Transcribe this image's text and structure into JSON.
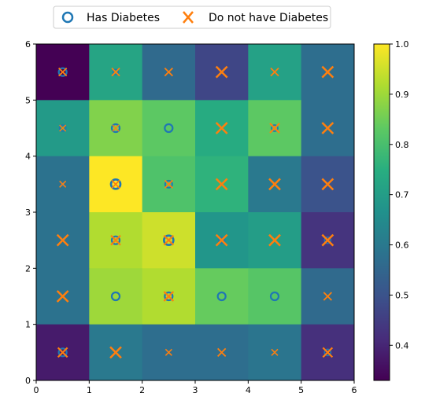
{
  "chart_data": {
    "type": "heatmap",
    "title": "",
    "xlabel": "",
    "ylabel": "",
    "xlim": [
      0,
      6
    ],
    "ylim": [
      0,
      6
    ],
    "x_ticks": [
      "0",
      "1",
      "2",
      "3",
      "4",
      "5",
      "6"
    ],
    "y_ticks": [
      "0",
      "1",
      "2",
      "3",
      "4",
      "5",
      "6"
    ],
    "grid": false,
    "legend_placement": "top-center",
    "colormap": "viridis",
    "colorbar": {
      "range": [
        0.33,
        1.0
      ],
      "ticks": [
        "0.4",
        "0.5",
        "0.6",
        "0.7",
        "0.8",
        "0.9",
        "1.0"
      ],
      "tick_values": [
        0.4,
        0.5,
        0.6,
        0.7,
        0.8,
        0.9,
        1.0
      ]
    },
    "heatmap_rows_top_to_bottom": [
      [
        0.33,
        0.72,
        0.56,
        0.47,
        0.71,
        0.57
      ],
      [
        0.69,
        0.87,
        0.83,
        0.74,
        0.83,
        0.57
      ],
      [
        0.58,
        1.0,
        0.81,
        0.76,
        0.6,
        0.5
      ],
      [
        0.58,
        0.92,
        0.95,
        0.68,
        0.7,
        0.43
      ],
      [
        0.58,
        0.9,
        0.92,
        0.84,
        0.82,
        0.56
      ],
      [
        0.38,
        0.6,
        0.57,
        0.57,
        0.59,
        0.42
      ]
    ],
    "series": [
      {
        "name": "Has Diabetes",
        "marker": "circle",
        "color": "#1f77b4",
        "points": [
          [
            0.5,
            5.5,
            10
          ],
          [
            1.5,
            5.5,
            7
          ],
          [
            3.5,
            5.5,
            3
          ],
          [
            0.5,
            4.5,
            8
          ],
          [
            1.5,
            4.5,
            10
          ],
          [
            2.5,
            4.5,
            10
          ],
          [
            4.5,
            4.5,
            8
          ],
          [
            0.5,
            3.5,
            4
          ],
          [
            1.5,
            3.5,
            12
          ],
          [
            2.5,
            3.5,
            9
          ],
          [
            1.5,
            2.5,
            10
          ],
          [
            2.5,
            2.5,
            12
          ],
          [
            3.5,
            2.5,
            8
          ],
          [
            5.5,
            2.5,
            8
          ],
          [
            1.5,
            1.5,
            10
          ],
          [
            2.5,
            1.5,
            10
          ],
          [
            3.5,
            1.5,
            10
          ],
          [
            4.5,
            1.5,
            10
          ],
          [
            0.5,
            0.5,
            10
          ],
          [
            5.5,
            0.5,
            8
          ]
        ]
      },
      {
        "name": "Do not have Diabetes",
        "marker": "x",
        "color": "#ff7f0e",
        "points": [
          [
            0.5,
            5.5,
            5
          ],
          [
            1.5,
            5.5,
            5
          ],
          [
            2.5,
            5.5,
            5
          ],
          [
            3.5,
            5.5,
            7
          ],
          [
            4.5,
            5.5,
            5
          ],
          [
            5.5,
            5.5,
            7
          ],
          [
            0.5,
            4.5,
            4
          ],
          [
            1.5,
            4.5,
            4
          ],
          [
            3.5,
            4.5,
            7
          ],
          [
            4.5,
            4.5,
            6
          ],
          [
            5.5,
            4.5,
            7
          ],
          [
            0.5,
            3.5,
            4
          ],
          [
            1.5,
            3.5,
            5
          ],
          [
            2.5,
            3.5,
            5
          ],
          [
            3.5,
            3.5,
            7
          ],
          [
            4.5,
            3.5,
            7
          ],
          [
            5.5,
            3.5,
            7
          ],
          [
            0.5,
            2.5,
            7
          ],
          [
            1.5,
            2.5,
            6
          ],
          [
            2.5,
            2.5,
            6
          ],
          [
            3.5,
            2.5,
            7
          ],
          [
            4.5,
            2.5,
            7
          ],
          [
            5.5,
            2.5,
            7
          ],
          [
            0.5,
            1.5,
            7
          ],
          [
            2.5,
            1.5,
            6
          ],
          [
            5.5,
            1.5,
            5
          ],
          [
            0.5,
            0.5,
            6
          ],
          [
            1.5,
            0.5,
            7
          ],
          [
            2.5,
            0.5,
            4
          ],
          [
            3.5,
            0.5,
            5
          ],
          [
            4.5,
            0.5,
            4
          ],
          [
            5.5,
            0.5,
            6
          ]
        ]
      }
    ]
  },
  "legend": {
    "items": [
      {
        "label": "Has Diabetes",
        "marker": "circle",
        "color": "#1f77b4"
      },
      {
        "label": "Do not have Diabetes",
        "marker": "x",
        "color": "#ff7f0e"
      }
    ]
  }
}
